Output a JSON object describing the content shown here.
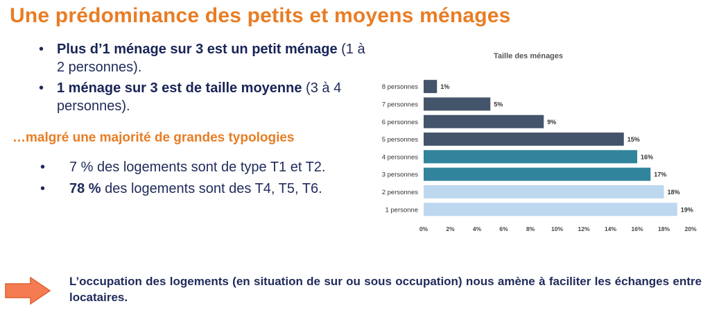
{
  "title": "Une prédominance des petits et moyens ménages",
  "bullets": [
    {
      "bold": "Plus d’1 ménage sur 3 est un petit ménage",
      "rest": "(1 à 2 personnes)."
    },
    {
      "bold": "1 ménage sur 3 est de taille moyenne",
      "rest": "(3 à 4 personnes)."
    }
  ],
  "subtitle": "…malgré une majorité de grandes typologies",
  "bullets2": [
    {
      "bold": "",
      "rest": "7 % des logements sont de type T1 et T2."
    },
    {
      "bold": "78 %",
      "rest": "des logements sont des T4, T5, T6."
    }
  ],
  "conclusion": "L’occupation des logements (en situation de sur ou sous occupation) nous amène à faciliter les échanges entre locataires.",
  "arrow_icon": "right-arrow-icon",
  "chart_data": {
    "type": "bar",
    "orientation": "horizontal",
    "title": "Taille des ménages",
    "categories": [
      "8 personnes",
      "7 personnes",
      "6 personnes",
      "5 personnes",
      "4 personnes",
      "3 personnes",
      "2 personnes",
      "1 personne"
    ],
    "values": [
      1,
      5,
      9,
      15,
      16,
      17,
      18,
      19
    ],
    "value_labels": [
      "1%",
      "5%",
      "9%",
      "15%",
      "16%",
      "17%",
      "18%",
      "19%"
    ],
    "colors": [
      "#44546a",
      "#44546a",
      "#44546a",
      "#44546a",
      "#31849b",
      "#31849b",
      "#bdd7ee",
      "#bdd7ee"
    ],
    "xlim": [
      0,
      20
    ],
    "xticks": [
      "0%",
      "2%",
      "4%",
      "6%",
      "8%",
      "10%",
      "12%",
      "14%",
      "16%",
      "18%",
      "20%"
    ],
    "xlabel": "",
    "ylabel": "",
    "grid": false
  },
  "colors": {
    "accent": "#e87d24",
    "text": "#1f2a5a"
  }
}
